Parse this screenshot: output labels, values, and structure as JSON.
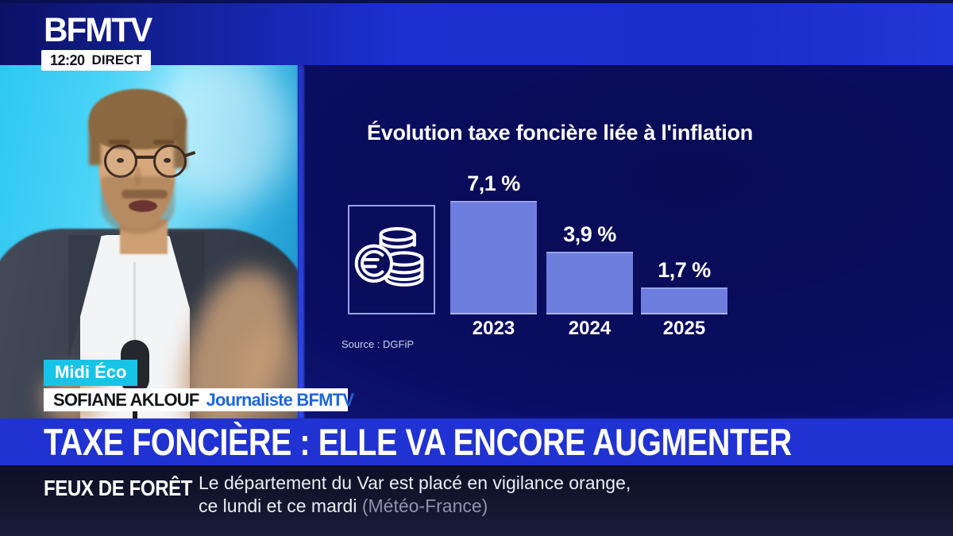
{
  "header": {
    "logo": "BFMTV",
    "time": "12:20",
    "live_label": "DIRECT"
  },
  "video": {
    "program_badge": "Midi Éco",
    "speaker_name": "SOFIANE AKLOUF",
    "speaker_role": "Journaliste BFMTV"
  },
  "chart_panel": {
    "source": "Source : DGFiP",
    "icon": "euro-coins-icon"
  },
  "chart_data": {
    "type": "bar",
    "title": "Évolution taxe foncière liée à l'inflation",
    "categories": [
      "2023",
      "2024",
      "2025"
    ],
    "values": [
      7.1,
      3.9,
      1.7
    ],
    "labels": [
      "7,1 %",
      "3,9 %",
      "1,7 %"
    ],
    "unit": "%",
    "ylim": [
      0,
      7.5
    ],
    "bar_color": "#6e7ede",
    "source": "Source : DGFiP",
    "grid": false,
    "legend": "none"
  },
  "headline": {
    "text": "TAXE FONCIÈRE : ELLE VA ENCORE AUGMENTER"
  },
  "ticker": {
    "topic": "FEUX DE FORÊT",
    "line1": "Le département du Var est placé en vigilance orange,",
    "line2": "ce lundi et ce mardi",
    "attribution": "(Météo-France)"
  },
  "colors": {
    "accent_blue": "#2132d2",
    "top_band_blue": "#1c2fd0",
    "panel_navy": "#0a0d62",
    "bar_blue": "#6e7ede",
    "badge_cyan": "#17c4e8",
    "role_blue": "#1e66db",
    "studio_cyan": "#2ec8f2",
    "ticker_navy": "#12142f"
  }
}
